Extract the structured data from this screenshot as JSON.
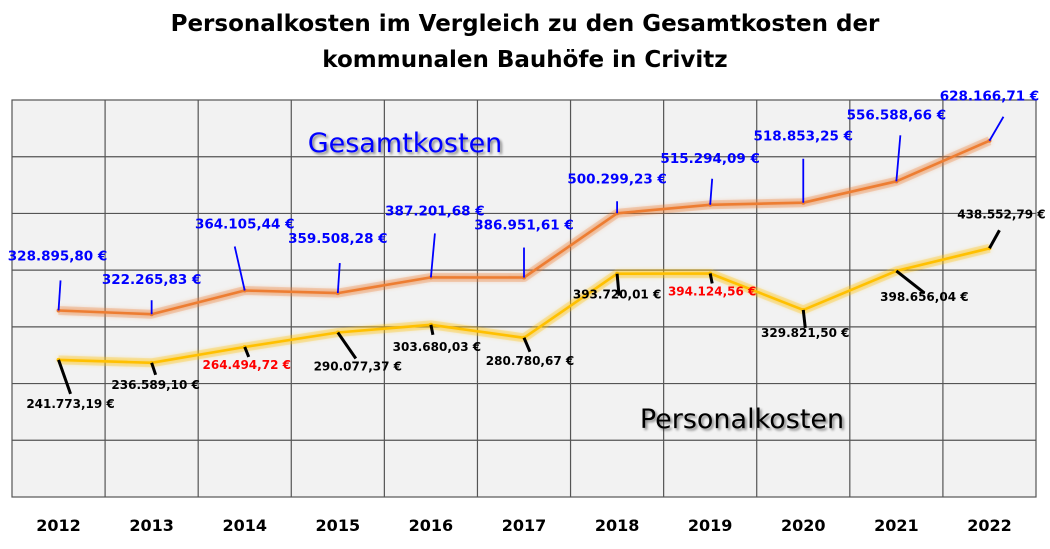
{
  "chart_data": {
    "type": "line",
    "title_lines": [
      "Personalkosten im Vergleich zu den Gesamtkosten der",
      "kommunalen Bauhöfe in Crivitz"
    ],
    "categories": [
      "2012",
      "2013",
      "2014",
      "2015",
      "2016",
      "2017",
      "2018",
      "2019",
      "2020",
      "2021",
      "2022"
    ],
    "ylim": [
      0,
      700000
    ],
    "grid": true,
    "series": [
      {
        "name": "Gesamtkosten",
        "color": "#ED7D31",
        "label_color": "#0000FF",
        "values": [
          328895.8,
          322265.83,
          364105.44,
          359508.28,
          387201.68,
          386951.61,
          500299.23,
          515294.09,
          518853.25,
          556588.66,
          628166.71
        ],
        "labels": [
          "328.895,80 €",
          "322.265,83 €",
          "364.105,44 €",
          "359.508,28 €",
          "387.201,68 €",
          "386.951,61 €",
          "500.299,23 €",
          "515.294,09 €",
          "518.853,25 €",
          "556.588,66 €",
          "628.166,71 €"
        ]
      },
      {
        "name": "Personalkosten",
        "color": "#FFC000",
        "label_color": "#000000",
        "highlight_color": "#FF0000",
        "highlight_indices": [
          2,
          7
        ],
        "values": [
          241773.19,
          236589.1,
          264494.72,
          290077.37,
          303680.03,
          280780.67,
          393720.01,
          394124.56,
          329821.5,
          398656.04,
          438552.79
        ],
        "labels": [
          "241.773,19 €",
          "236.589,10 €",
          "264.494,72 €",
          "290.077,37 €",
          "303.680,03 €",
          "280.780,67 €",
          "393.720,01 €",
          "394.124,56 €",
          "329.821,50 €",
          "398.656,04 €",
          "438.552,79 €"
        ]
      }
    ]
  }
}
